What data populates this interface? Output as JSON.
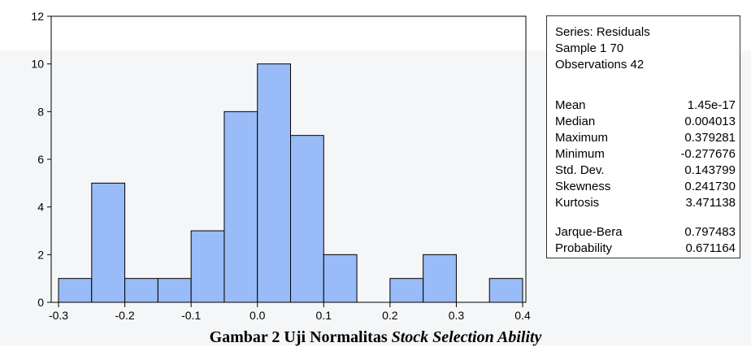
{
  "chart_data": {
    "type": "bar",
    "bins": [
      {
        "from": -0.3,
        "to": -0.25,
        "count": 1
      },
      {
        "from": -0.25,
        "to": -0.2,
        "count": 5
      },
      {
        "from": -0.2,
        "to": -0.15,
        "count": 1
      },
      {
        "from": -0.15,
        "to": -0.1,
        "count": 1
      },
      {
        "from": -0.1,
        "to": -0.05,
        "count": 3
      },
      {
        "from": -0.05,
        "to": 0.0,
        "count": 8
      },
      {
        "from": 0.0,
        "to": 0.05,
        "count": 10
      },
      {
        "from": 0.05,
        "to": 0.1,
        "count": 7
      },
      {
        "from": 0.1,
        "to": 0.15,
        "count": 2
      },
      {
        "from": 0.15,
        "to": 0.2,
        "count": 0
      },
      {
        "from": 0.2,
        "to": 0.25,
        "count": 1
      },
      {
        "from": 0.25,
        "to": 0.3,
        "count": 2
      },
      {
        "from": 0.3,
        "to": 0.35,
        "count": 0
      },
      {
        "from": 0.35,
        "to": 0.4,
        "count": 1
      }
    ],
    "xlim": [
      -0.3,
      0.4
    ],
    "ylim": [
      0,
      12
    ],
    "x_ticks": [
      -0.3,
      -0.2,
      -0.1,
      0.0,
      0.1,
      0.2,
      0.3,
      0.4
    ],
    "x_tick_labels": [
      "-0.3",
      "-0.2",
      "-0.1",
      "0.0",
      "0.1",
      "0.2",
      "0.3",
      "0.4"
    ],
    "y_ticks": [
      0,
      2,
      4,
      6,
      8,
      10,
      12
    ],
    "y_tick_labels": [
      "0",
      "2",
      "4",
      "6",
      "8",
      "10",
      "12"
    ],
    "bar_color": "#99bbf7",
    "bar_edge_color": "#000000",
    "title": "",
    "xlabel": "",
    "ylabel": "",
    "grid": false
  },
  "stats": {
    "series": "Series: Residuals",
    "sample": "Sample 1 70",
    "observations": "Observations 42",
    "rows": [
      {
        "label": "Mean",
        "value": "1.45e-17"
      },
      {
        "label": "Median",
        "value": "0.004013"
      },
      {
        "label": "Maximum",
        "value": "0.379281"
      },
      {
        "label": "Minimum",
        "value": "-0.277676"
      },
      {
        "label": "Std. Dev.",
        "value": "0.143799"
      },
      {
        "label": "Skewness",
        "value": "0.241730"
      },
      {
        "label": "Kurtosis",
        "value": "3.471138"
      },
      {
        "label": "Jarque-Bera",
        "value": "0.797483"
      },
      {
        "label": "Probability",
        "value": "0.671164"
      }
    ]
  },
  "caption": {
    "prefix": "Gambar 2 Uji Normalitas ",
    "italic": "Stock Selection Ability"
  }
}
